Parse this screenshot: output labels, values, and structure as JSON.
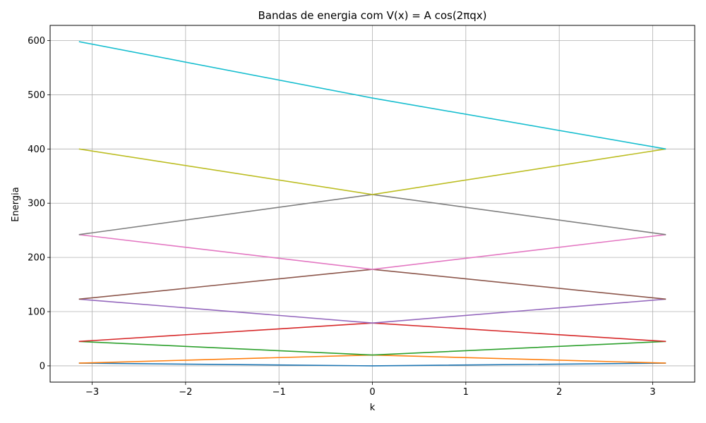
{
  "chart_data": {
    "type": "line",
    "title": "Bandas de energia com V(x) = A cos(2πqx)",
    "xlabel": "k",
    "ylabel": "Energia",
    "xlim": [
      -3.45,
      3.45
    ],
    "ylim": [
      -30,
      628
    ],
    "grid": true,
    "legend": "none",
    "xticks": [
      -3,
      -2,
      -1,
      0,
      1,
      2,
      3
    ],
    "xtick_labels": [
      "−3",
      "−2",
      "−1",
      "0",
      "1",
      "2",
      "3"
    ],
    "yticks": [
      0,
      100,
      200,
      300,
      400,
      500,
      600
    ],
    "ytick_labels": [
      "0",
      "100",
      "200",
      "300",
      "400",
      "500",
      "600"
    ],
    "series": [
      {
        "color": "#1f77b4",
        "x": [
          -3.1416,
          0,
          3.1416
        ],
        "y": [
          5,
          0,
          5
        ]
      },
      {
        "color": "#ff7f0e",
        "x": [
          -3.1416,
          0,
          3.1416
        ],
        "y": [
          5,
          20,
          5
        ]
      },
      {
        "color": "#2ca02c",
        "x": [
          -3.1416,
          0,
          3.1416
        ],
        "y": [
          45,
          20,
          45
        ]
      },
      {
        "color": "#d62728",
        "x": [
          -3.1416,
          0,
          3.1416
        ],
        "y": [
          45,
          79,
          45
        ]
      },
      {
        "color": "#9467bd",
        "x": [
          -3.1416,
          0,
          3.1416
        ],
        "y": [
          123,
          79,
          123
        ]
      },
      {
        "color": "#8c564b",
        "x": [
          -3.1416,
          0,
          3.1416
        ],
        "y": [
          123,
          178,
          123
        ]
      },
      {
        "color": "#e377c2",
        "x": [
          -3.1416,
          0,
          3.1416
        ],
        "y": [
          242,
          178,
          242
        ]
      },
      {
        "color": "#7f7f7f",
        "x": [
          -3.1416,
          0,
          3.1416
        ],
        "y": [
          242,
          316,
          242
        ]
      },
      {
        "color": "#bcbd22",
        "x": [
          -3.1416,
          0,
          3.1416
        ],
        "y": [
          400,
          316,
          400
        ]
      },
      {
        "color": "#17becf",
        "x": [
          -3.1416,
          0,
          3.1416
        ],
        "y": [
          598,
          494,
          400
        ]
      }
    ],
    "colors": {
      "grid": "#b0b0b0",
      "axes": "#000000",
      "background": "#ffffff"
    }
  }
}
